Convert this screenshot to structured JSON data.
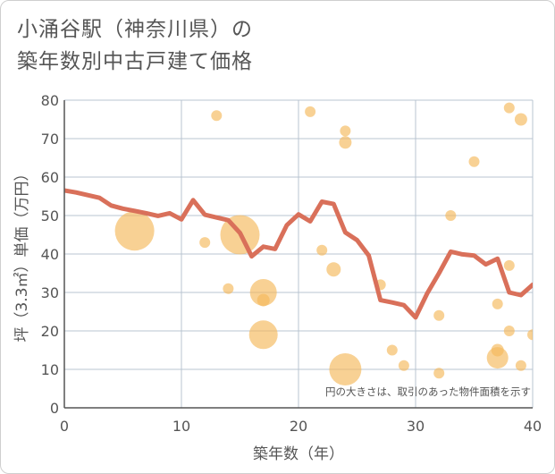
{
  "title_line1": "小涌谷駅（神奈川県）の",
  "title_line2": "築年数別中古戸建て価格",
  "colors": {
    "line": "#d9705a",
    "bubble": "#f5b95a",
    "grid": "#b8c4d0",
    "axis": "#555555",
    "plot_bg": "#ffffff"
  },
  "chart_data": {
    "type": "scatter",
    "xlabel": "築年数（年）",
    "ylabel": "坪（3.3㎡）単価（万円）",
    "xlim": [
      0,
      40
    ],
    "ylim": [
      0,
      80
    ],
    "xticks": [
      0,
      10,
      20,
      30,
      40
    ],
    "yticks": [
      0,
      10,
      20,
      30,
      40,
      50,
      60,
      70,
      80
    ],
    "xtick_labels": [
      "0",
      "10",
      "20",
      "30",
      "40"
    ],
    "ytick_labels": [
      "0",
      "10",
      "20",
      "30",
      "40",
      "50",
      "60",
      "70",
      "80"
    ],
    "grid": true,
    "note": "円の大きさは、取引のあった物件面積を示す",
    "trend": {
      "x": [
        0,
        1,
        2,
        3,
        4,
        5,
        6,
        7,
        8,
        9,
        10,
        11,
        12,
        13,
        14,
        15,
        16,
        17,
        18,
        19,
        20,
        21,
        22,
        23,
        24,
        25,
        26,
        27,
        28,
        29,
        30,
        31,
        32,
        33,
        34,
        35,
        36,
        37,
        38,
        39,
        40
      ],
      "y": [
        56.5,
        56.0,
        55.3,
        54.6,
        52.6,
        51.8,
        51.2,
        50.6,
        49.9,
        50.6,
        49.0,
        54.0,
        50.2,
        49.5,
        48.8,
        45.5,
        39.4,
        41.9,
        41.3,
        47.5,
        50.3,
        48.5,
        53.6,
        53.0,
        45.6,
        43.6,
        39.6,
        28.0,
        27.4,
        26.7,
        23.5,
        29.8,
        35.0,
        40.6,
        39.9,
        39.6,
        37.3,
        38.8,
        30.0,
        29.3,
        32.0
      ]
    },
    "bubbles": [
      {
        "x": 6,
        "y": 46,
        "size": 22
      },
      {
        "x": 12,
        "y": 43,
        "size": 6
      },
      {
        "x": 13,
        "y": 76,
        "size": 6
      },
      {
        "x": 14,
        "y": 31,
        "size": 6
      },
      {
        "x": 15,
        "y": 45,
        "size": 22
      },
      {
        "x": 17,
        "y": 30,
        "size": 15
      },
      {
        "x": 17,
        "y": 28,
        "size": 7
      },
      {
        "x": 17,
        "y": 19,
        "size": 16
      },
      {
        "x": 21,
        "y": 77,
        "size": 6
      },
      {
        "x": 22,
        "y": 41,
        "size": 6
      },
      {
        "x": 23,
        "y": 36,
        "size": 8
      },
      {
        "x": 24,
        "y": 72,
        "size": 6
      },
      {
        "x": 24,
        "y": 69,
        "size": 7
      },
      {
        "x": 24,
        "y": 10,
        "size": 18
      },
      {
        "x": 27,
        "y": 32,
        "size": 6
      },
      {
        "x": 28,
        "y": 15,
        "size": 6
      },
      {
        "x": 29,
        "y": 11,
        "size": 6
      },
      {
        "x": 32,
        "y": 24,
        "size": 6
      },
      {
        "x": 32,
        "y": 9,
        "size": 6
      },
      {
        "x": 33,
        "y": 50,
        "size": 6
      },
      {
        "x": 35,
        "y": 64,
        "size": 6
      },
      {
        "x": 37,
        "y": 27,
        "size": 6
      },
      {
        "x": 37,
        "y": 15,
        "size": 7
      },
      {
        "x": 37,
        "y": 13,
        "size": 12
      },
      {
        "x": 38,
        "y": 78,
        "size": 6
      },
      {
        "x": 38,
        "y": 37,
        "size": 6
      },
      {
        "x": 38,
        "y": 20,
        "size": 6
      },
      {
        "x": 39,
        "y": 75,
        "size": 7
      },
      {
        "x": 39,
        "y": 11,
        "size": 6
      },
      {
        "x": 40,
        "y": 19,
        "size": 6
      }
    ]
  }
}
